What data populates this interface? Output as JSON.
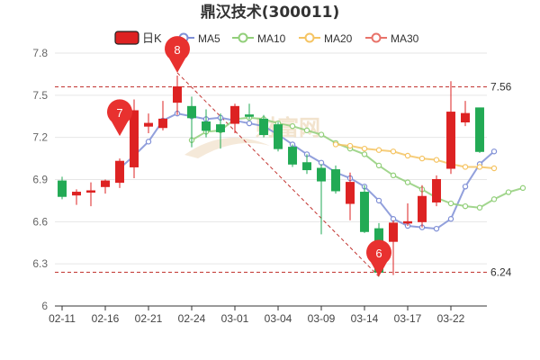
{
  "chart_data": {
    "type": "candlestick",
    "title": "鼎汉技术(300011)",
    "legend": [
      {
        "label": "日K",
        "color": "#dd2222",
        "kind": "box"
      },
      {
        "label": "MA5",
        "color": "#7f8fd6",
        "kind": "line"
      },
      {
        "label": "MA10",
        "color": "#92cf7a",
        "kind": "line"
      },
      {
        "label": "MA20",
        "color": "#f5c463",
        "kind": "line"
      },
      {
        "label": "MA30",
        "color": "#e8736a",
        "kind": "line"
      }
    ],
    "legend_position": "top-center",
    "ylim": [
      6.0,
      7.8
    ],
    "yticks": [
      6,
      6.3,
      6.6,
      6.9,
      7.2,
      7.5,
      7.8
    ],
    "ytick_labels": [
      "6",
      "6.3",
      "6.6",
      "6.9",
      "7.2",
      "7.5",
      "7.8"
    ],
    "xticks": [
      {
        "label": "02-11",
        "index": 0
      },
      {
        "label": "02-16",
        "index": 3
      },
      {
        "label": "02-21",
        "index": 6
      },
      {
        "label": "02-24",
        "index": 9
      },
      {
        "label": "03-01",
        "index": 12
      },
      {
        "label": "03-04",
        "index": 15
      },
      {
        "label": "03-09",
        "index": 18
      },
      {
        "label": "03-14",
        "index": 21
      },
      {
        "label": "03-17",
        "index": 24
      },
      {
        "label": "03-22",
        "index": 27
      }
    ],
    "colors": {
      "up": "#dd2222",
      "down": "#22aa55",
      "grid": "#e6e6e6",
      "ref": "#c23531"
    },
    "candles": [
      {
        "o": 6.89,
        "c": 6.78,
        "h": 6.92,
        "l": 6.76
      },
      {
        "o": 6.79,
        "c": 6.81,
        "h": 6.83,
        "l": 6.72
      },
      {
        "o": 6.81,
        "c": 6.82,
        "h": 6.88,
        "l": 6.71
      },
      {
        "o": 6.85,
        "c": 6.89,
        "h": 6.9,
        "l": 6.8
      },
      {
        "o": 6.88,
        "c": 7.03,
        "h": 7.05,
        "l": 6.84
      },
      {
        "o": 6.99,
        "c": 7.39,
        "h": 7.47,
        "l": 6.91
      },
      {
        "o": 7.28,
        "c": 7.3,
        "h": 7.37,
        "l": 7.23
      },
      {
        "o": 7.27,
        "c": 7.33,
        "h": 7.46,
        "l": 7.25
      },
      {
        "o": 7.45,
        "c": 7.56,
        "h": 7.64,
        "l": 7.36
      },
      {
        "o": 7.42,
        "c": 7.34,
        "h": 7.49,
        "l": 7.13
      },
      {
        "o": 7.31,
        "c": 7.25,
        "h": 7.4,
        "l": 7.2
      },
      {
        "o": 7.29,
        "c": 7.24,
        "h": 7.37,
        "l": 7.12
      },
      {
        "o": 7.3,
        "c": 7.42,
        "h": 7.44,
        "l": 7.23
      },
      {
        "o": 7.36,
        "c": 7.35,
        "h": 7.44,
        "l": 7.33
      },
      {
        "o": 7.33,
        "c": 7.22,
        "h": 7.36,
        "l": 7.2
      },
      {
        "o": 7.29,
        "c": 7.12,
        "h": 7.31,
        "l": 7.1
      },
      {
        "o": 7.13,
        "c": 7.01,
        "h": 7.15,
        "l": 6.99
      },
      {
        "o": 7.02,
        "c": 6.97,
        "h": 7.08,
        "l": 6.94
      },
      {
        "o": 6.98,
        "c": 6.89,
        "h": 7.01,
        "l": 6.51
      },
      {
        "o": 6.97,
        "c": 6.82,
        "h": 7.0,
        "l": 6.8
      },
      {
        "o": 6.73,
        "c": 6.88,
        "h": 6.95,
        "l": 6.61
      },
      {
        "o": 6.81,
        "c": 6.53,
        "h": 6.86,
        "l": 6.52
      },
      {
        "o": 6.55,
        "c": 6.24,
        "h": 6.59,
        "l": 6.21
      },
      {
        "o": 6.46,
        "c": 6.59,
        "h": 6.61,
        "l": 6.22
      },
      {
        "o": 6.6,
        "c": 6.6,
        "h": 6.73,
        "l": 6.57
      },
      {
        "o": 6.6,
        "c": 6.78,
        "h": 6.86,
        "l": 6.56
      },
      {
        "o": 6.74,
        "c": 6.9,
        "h": 6.93,
        "l": 6.71
      },
      {
        "o": 6.98,
        "c": 7.38,
        "h": 7.6,
        "l": 6.94
      },
      {
        "o": 7.31,
        "c": 7.37,
        "h": 7.46,
        "l": 7.28
      },
      {
        "o": 7.41,
        "c": 7.1,
        "h": 7.41,
        "l": 7.09
      }
    ],
    "series": [
      {
        "name": "MA5",
        "color": "#7f8fd6",
        "start": 4,
        "values": [
          6.98,
          7.07,
          7.17,
          7.32,
          7.37,
          7.35,
          7.33,
          7.34,
          7.32,
          7.3,
          7.28,
          7.22,
          7.15,
          7.08,
          7.02,
          6.95,
          6.91,
          6.85,
          6.75,
          6.62,
          6.57,
          6.56,
          6.55,
          6.62,
          6.85,
          7.01,
          7.1
        ]
      },
      {
        "name": "MA10",
        "color": "#92cf7a",
        "start": 9,
        "values": [
          7.18,
          7.24,
          7.25,
          7.33,
          7.34,
          7.33,
          7.3,
          7.28,
          7.25,
          7.22,
          7.16,
          7.12,
          7.08,
          7.0,
          6.93,
          6.88,
          6.83,
          6.77,
          6.73,
          6.71,
          6.7,
          6.76,
          6.81,
          6.84
        ]
      },
      {
        "name": "MA20",
        "color": "#f5c463",
        "start": 19,
        "values": [
          7.15,
          7.14,
          7.12,
          7.11,
          7.1,
          7.07,
          7.05,
          7.04,
          7.01,
          6.99,
          6.99,
          6.98
        ]
      }
    ],
    "highlights": [
      {
        "label": "7",
        "index": 4,
        "value": 7.21
      },
      {
        "label": "8",
        "index": 8,
        "value": 7.66
      },
      {
        "label": "6",
        "index": 22,
        "value": 6.21
      }
    ],
    "reference_lines": [
      {
        "value": 7.56,
        "label": "7.56"
      },
      {
        "value": 6.24,
        "label": "6.24"
      }
    ],
    "trend_line": {
      "from": {
        "index": 8,
        "value": 7.66
      },
      "to": {
        "index": 22,
        "value": 6.21
      }
    },
    "watermark": "财富网"
  }
}
